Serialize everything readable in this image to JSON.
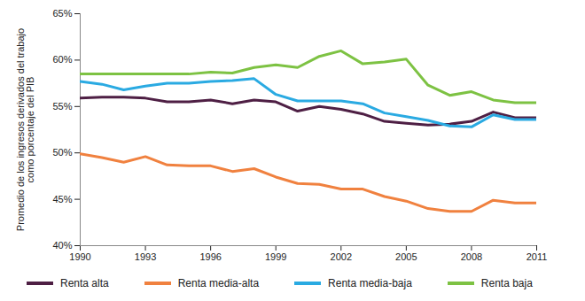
{
  "chart_data": {
    "type": "line",
    "y_label": "Promedio de los ingresos derivados del trabajo como porcentaje del PIB",
    "x": [
      1990,
      1991,
      1992,
      1993,
      1994,
      1995,
      1996,
      1997,
      1998,
      1999,
      2000,
      2001,
      2002,
      2003,
      2004,
      2005,
      2006,
      2007,
      2008,
      2009,
      2010,
      2011
    ],
    "xlim": [
      1990,
      2011
    ],
    "xticks": [
      1990,
      1993,
      1996,
      1999,
      2002,
      2005,
      2008,
      2011
    ],
    "ylim": [
      40,
      65
    ],
    "yticks": [
      {
        "value": 40,
        "label": "40%"
      },
      {
        "value": 45,
        "label": "45%"
      },
      {
        "value": 50,
        "label": "50%"
      },
      {
        "value": 55,
        "label": "55%"
      },
      {
        "value": 60,
        "label": "60%"
      },
      {
        "value": 65,
        "label": "65%"
      }
    ],
    "grid": false,
    "legend": "bottom",
    "series": [
      {
        "name": "Renta alta",
        "color": "#4e1f44",
        "values": [
          55.9,
          56.0,
          56.0,
          55.9,
          55.5,
          55.5,
          55.7,
          55.3,
          55.7,
          55.5,
          54.5,
          55.0,
          54.7,
          54.2,
          53.4,
          53.2,
          53.0,
          53.1,
          53.4,
          54.4,
          53.8,
          53.8
        ]
      },
      {
        "name": "Renta media-alta",
        "color": "#f0813f",
        "values": [
          49.9,
          49.5,
          49.0,
          49.6,
          48.7,
          48.6,
          48.6,
          48.0,
          48.3,
          47.4,
          46.7,
          46.6,
          46.1,
          46.1,
          45.3,
          44.8,
          44.0,
          43.7,
          43.7,
          44.9,
          44.6,
          44.6
        ]
      },
      {
        "name": "Renta media-baja",
        "color": "#2aaae2",
        "values": [
          57.7,
          57.4,
          56.8,
          57.2,
          57.5,
          57.5,
          57.7,
          57.8,
          58.0,
          56.3,
          55.6,
          55.6,
          55.6,
          55.3,
          54.3,
          53.9,
          53.5,
          52.9,
          52.8,
          54.1,
          53.6,
          53.6
        ]
      },
      {
        "name": "Renta baja",
        "color": "#7dc243",
        "values": [
          58.5,
          58.5,
          58.5,
          58.5,
          58.5,
          58.5,
          58.7,
          58.6,
          59.2,
          59.5,
          59.2,
          60.4,
          61.0,
          59.6,
          59.8,
          60.1,
          57.3,
          56.2,
          56.6,
          55.7,
          55.4,
          55.4
        ]
      }
    ]
  }
}
